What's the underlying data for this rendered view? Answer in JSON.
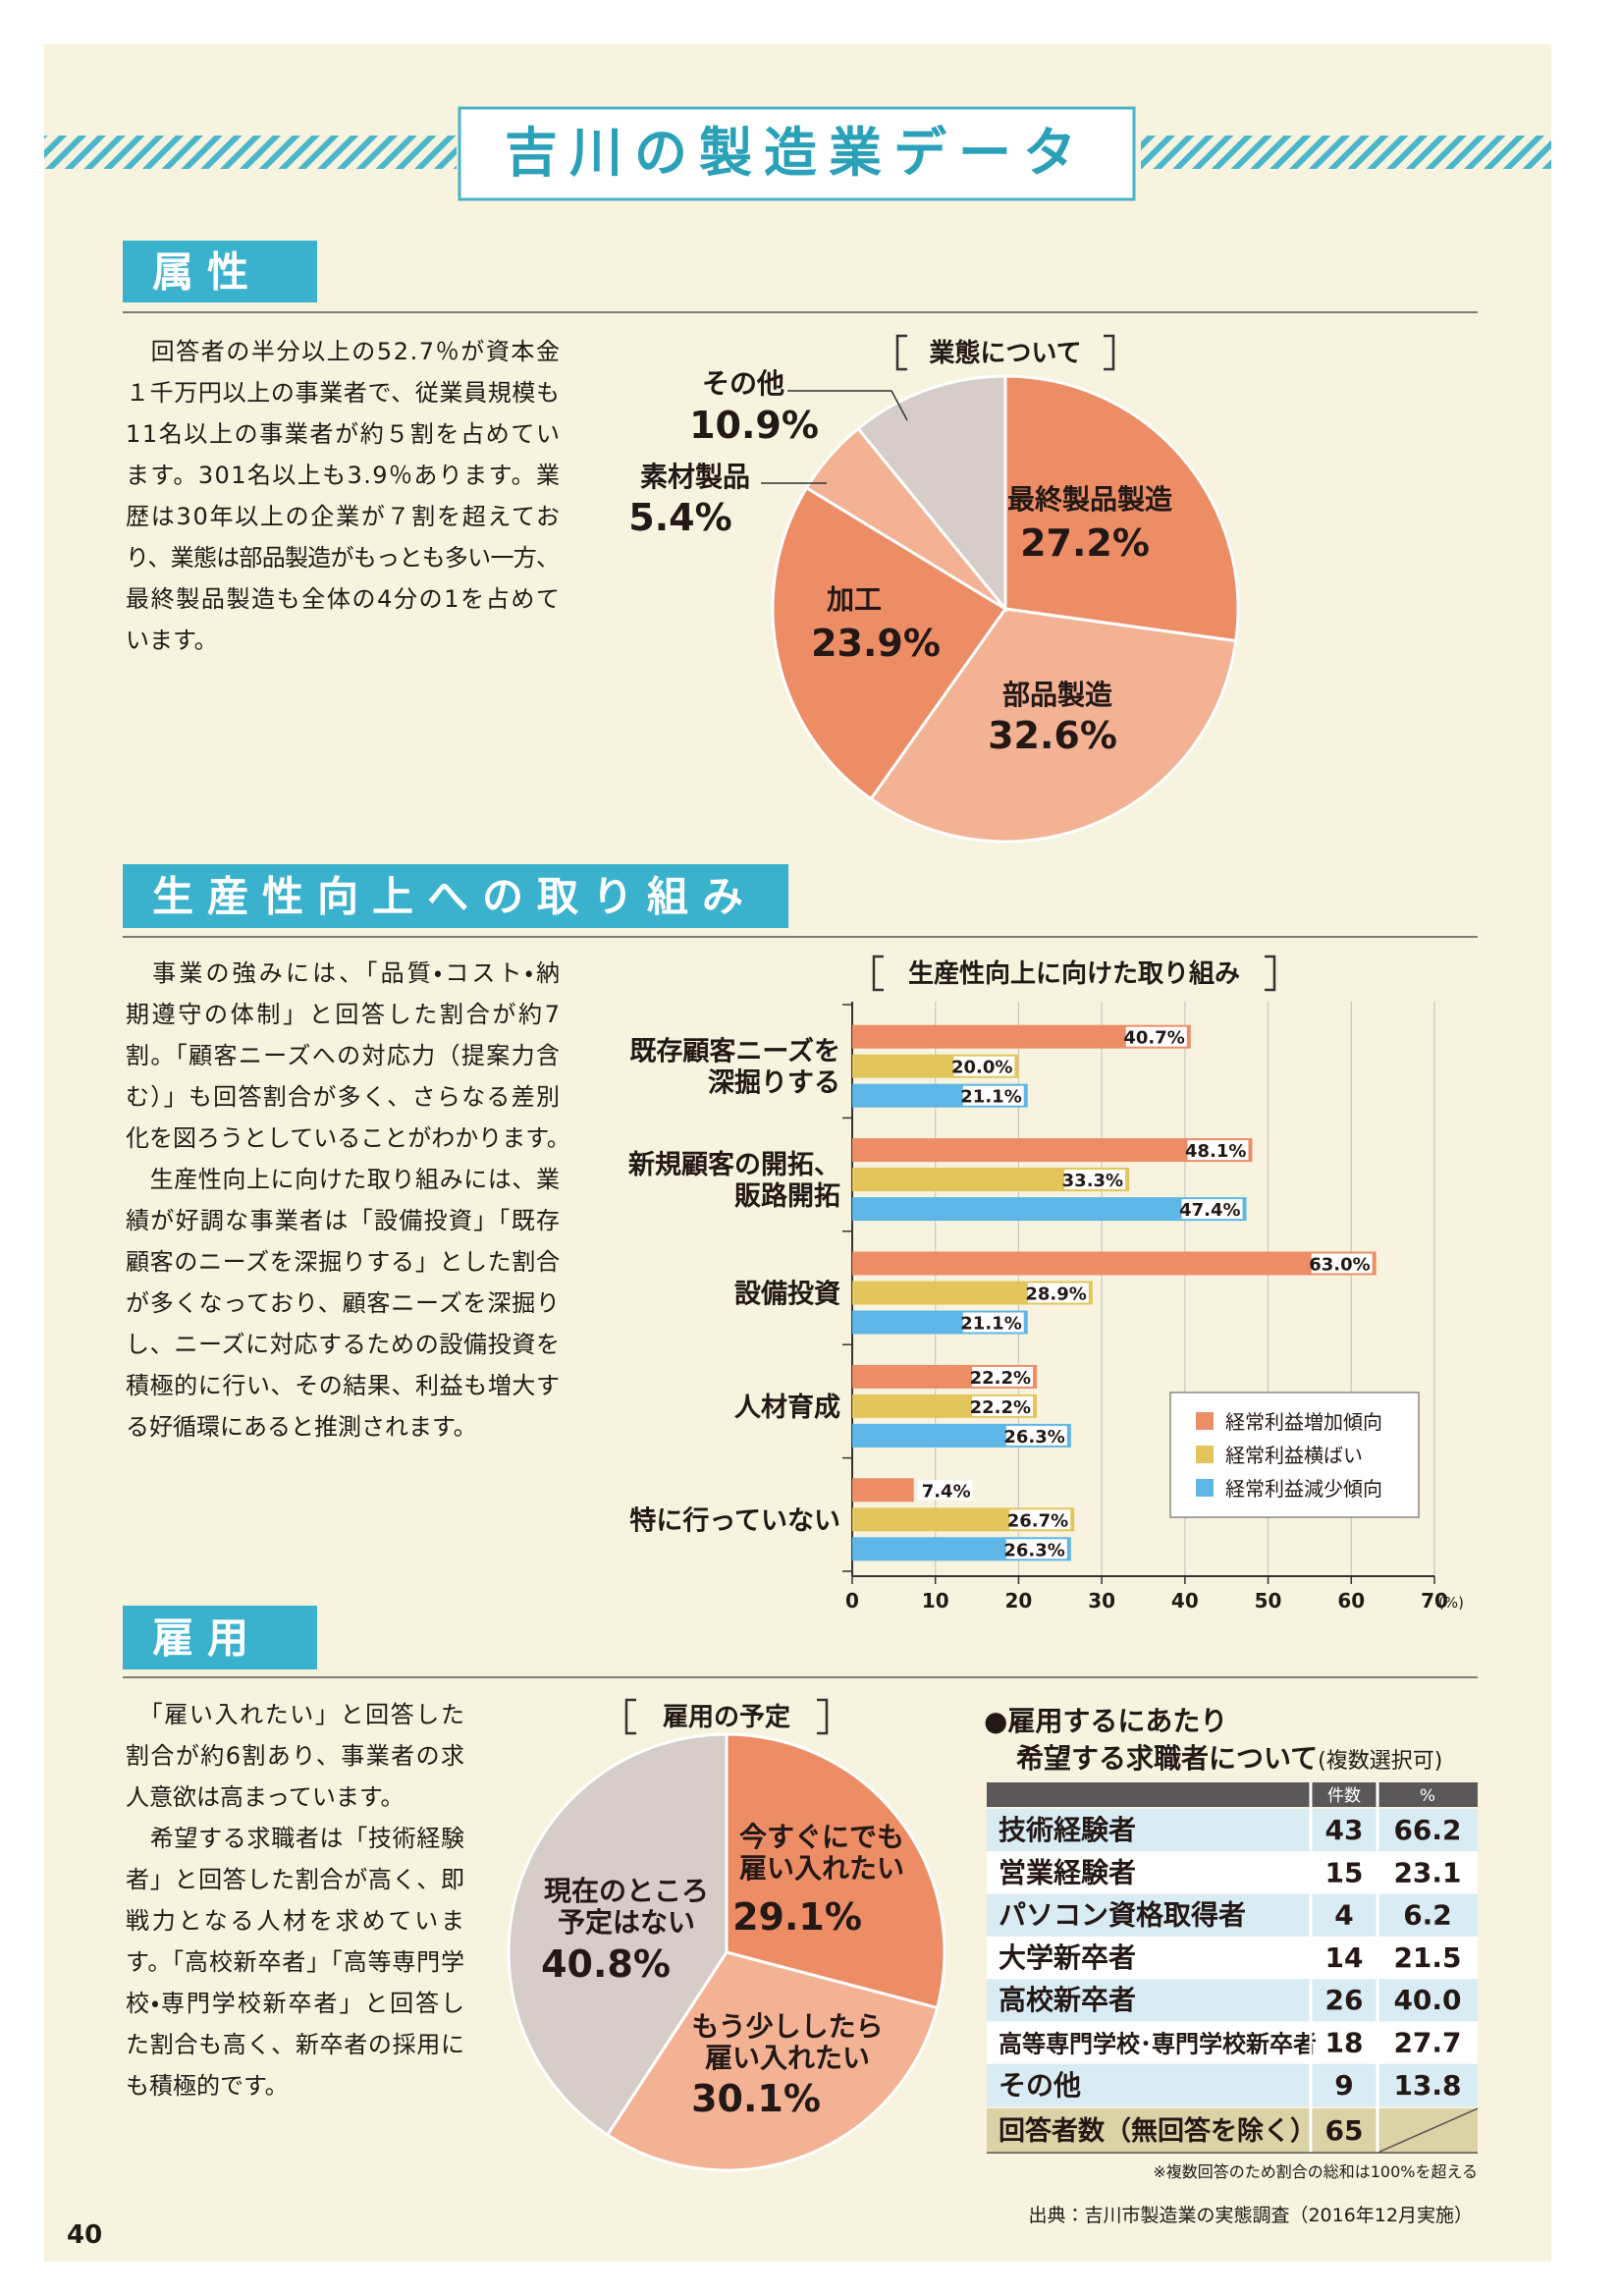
{
  "header": {
    "title": "吉川の製造業データ"
  },
  "sections": [
    {
      "heading": "属性",
      "paragraphs": [
        [
          "　回答者の半分以上の52.7％が資本金",
          "１千万円以上の事業者で、従業員規模も",
          "11名以上の事業者が約５割を占めてい",
          "ます。301名以上も3.9％あります。業",
          "歴は30年以上の企業が７割を超えてお",
          "り、業態は部品製造がもっとも多い一方、",
          "最終製品製造も全体の4分の1を占めて",
          "います。"
        ]
      ]
    },
    {
      "heading": "生産性向上への取り組み",
      "paragraphs": [
        [
          "　事業の強みには、「品質・コスト・納",
          "期遵守の体制」と回答した割合が約7",
          "割。「顧客ニーズへの対応力（提案力含",
          "む）」も回答割合が多く、さらなる差別",
          "化を図ろうとしていることがわかります。"
        ],
        [
          "　生産性向上に向けた取り組みには、業",
          "績が好調な事業者は「設備投資」「既存",
          "顧客のニーズを深掘りする」とした割合",
          "が多くなっており、顧客ニーズを深掘り",
          "し、ニーズに対応するための設備投資を",
          "積極的に行い、その結果、利益も増大す",
          "る好循環にあると推測されます。"
        ]
      ]
    },
    {
      "heading": "雇用",
      "paragraphs": [
        [
          "　「雇い入れたい」と回答した",
          "割合が約6割あり、事業者の求",
          "人意欲は高まっています。"
        ],
        [
          "　希望する求職者は「技術経験",
          "者」と回答した割合が高く、即",
          "戦力となる人材を求めていま",
          "す。「高校新卒者」「高等専門学",
          "校・専門学校新卒者」と回答し",
          "た割合も高く、新卒者の採用に",
          "も積極的です。"
        ]
      ]
    }
  ],
  "chart_data": [
    {
      "type": "pie",
      "title": "業態について",
      "categories": [
        [
          "最終製品製造"
        ],
        [
          "部品製造"
        ],
        [
          "加工"
        ],
        [
          "素材製品"
        ],
        [
          "その他"
        ]
      ],
      "values": [
        27.2,
        32.6,
        23.9,
        5.4,
        10.9
      ],
      "value_labels": [
        "27.2%",
        "32.6%",
        "23.9%",
        "5.4%",
        "10.9%"
      ],
      "colors": [
        "#ec8d66",
        "#f4b294",
        "#ec8d66",
        "#f4b294",
        "#d6ccc8"
      ]
    },
    {
      "type": "bar",
      "orientation": "horizontal",
      "title": "生産性向上に向けた取り組み",
      "categories": [
        [
          "既存顧客ニーズを",
          "深掘りする"
        ],
        [
          "新規顧客の開拓、",
          "販路開拓"
        ],
        [
          "設備投資"
        ],
        [
          "人材育成"
        ],
        [
          "特に行っていない"
        ]
      ],
      "series": [
        {
          "name": "経常利益増加傾向",
          "color": "#ec8d66",
          "values": [
            40.7,
            48.1,
            63.0,
            22.2,
            7.4
          ],
          "value_labels": [
            "40.7%",
            "48.1%",
            "63.0%",
            "22.2%",
            "7.4%"
          ]
        },
        {
          "name": "経常利益横ばい",
          "color": "#e3c55c",
          "values": [
            20.0,
            33.3,
            28.9,
            22.2,
            26.7
          ],
          "value_labels": [
            "20.0%",
            "33.3%",
            "28.9%",
            "22.2%",
            "26.7%"
          ]
        },
        {
          "name": "経常利益減少傾向",
          "color": "#5db6e6",
          "values": [
            21.1,
            47.4,
            21.1,
            26.3,
            26.3
          ],
          "value_labels": [
            "21.1%",
            "47.4%",
            "21.1%",
            "26.3%",
            "26.3%"
          ]
        }
      ],
      "xlim": [
        0,
        70
      ],
      "xticks": [
        0,
        10,
        20,
        30,
        40,
        50,
        60,
        70
      ],
      "x_label": "(%)",
      "grid": true,
      "legend": "lower right"
    },
    {
      "type": "pie",
      "title": "雇用の予定",
      "categories": [
        [
          "今すぐにでも",
          "雇い入れたい"
        ],
        [
          "もう少ししたら",
          "雇い入れたい"
        ],
        [
          "現在のところ",
          "予定はない"
        ]
      ],
      "values": [
        29.1,
        30.1,
        40.8
      ],
      "value_labels": [
        "29.1%",
        "30.1%",
        "40.8%"
      ],
      "colors": [
        "#ec8d66",
        "#f4b294",
        "#d6ccc8"
      ]
    }
  ],
  "table": {
    "title": [
      "●雇用するにあたり",
      "希望する求職者について"
    ],
    "title_note": "(複数選択可)",
    "columns": [
      "件数",
      "%"
    ],
    "rows": [
      [
        "技術経験者",
        43,
        "66.2"
      ],
      [
        "営業経験者",
        15,
        "23.1"
      ],
      [
        "パソコン資格取得者",
        4,
        "6.2"
      ],
      [
        "大学新卒者",
        14,
        "21.5"
      ],
      [
        "高校新卒者",
        26,
        "40.0"
      ],
      [
        "高等専門学校･専門学校新卒者",
        18,
        "27.7"
      ],
      [
        "その他",
        9,
        "13.8"
      ]
    ],
    "total": [
      "回答者数（無回答を除く）",
      65
    ],
    "note": "※複数回答のため割合の総和は100%を超える"
  },
  "footer": {
    "page_number": "40",
    "source": "出典：吉川市製造業の実態調査（2016年12月実施）"
  }
}
